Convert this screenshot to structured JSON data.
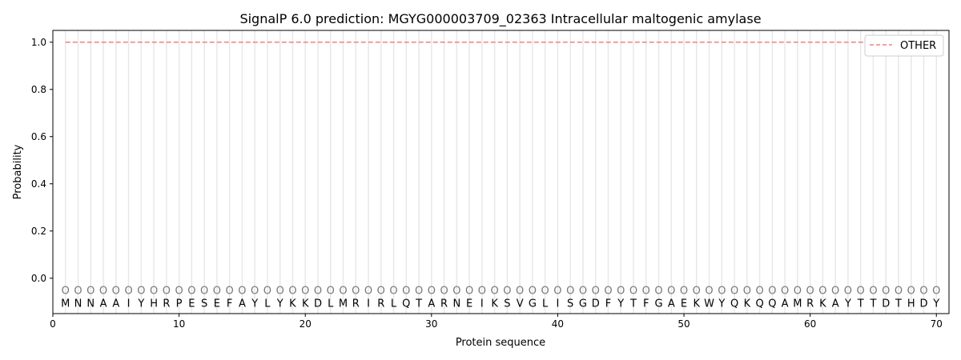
{
  "chart_data": {
    "type": "line",
    "title": "SignalP 6.0 prediction: MGYG000003709_02363 Intracellular maltogenic amylase",
    "xlabel": "Protein sequence",
    "ylabel": "Probability",
    "xlim": [
      0,
      71
    ],
    "ylim": [
      -0.15,
      1.05
    ],
    "xticks": [
      0,
      10,
      20,
      30,
      40,
      50,
      60,
      70
    ],
    "yticks": [
      0.0,
      0.2,
      0.4,
      0.6,
      0.8,
      1.0
    ],
    "sequence": [
      "M",
      "N",
      "N",
      "A",
      "A",
      "I",
      "Y",
      "H",
      "R",
      "P",
      "E",
      "S",
      "E",
      "F",
      "A",
      "Y",
      "L",
      "Y",
      "K",
      "K",
      "D",
      "L",
      "M",
      "R",
      "I",
      "R",
      "L",
      "Q",
      "T",
      "A",
      "R",
      "N",
      "E",
      "I",
      "K",
      "S",
      "V",
      "G",
      "L",
      "I",
      "S",
      "G",
      "D",
      "F",
      "Y",
      "T",
      "F",
      "G",
      "A",
      "E",
      "K",
      "W",
      "Y",
      "Q",
      "K",
      "Q",
      "Q",
      "A",
      "M",
      "R",
      "K",
      "A",
      "Y",
      "T",
      "T",
      "D",
      "T",
      "H",
      "D",
      "Y"
    ],
    "predicted_label": "O",
    "series": [
      {
        "name": "OTHER",
        "color": "#f08080",
        "style": "dashed",
        "x_range": [
          1,
          70
        ],
        "value": 1.0
      }
    ],
    "legend": "top-right",
    "grid": "vertical lines at each residue"
  }
}
